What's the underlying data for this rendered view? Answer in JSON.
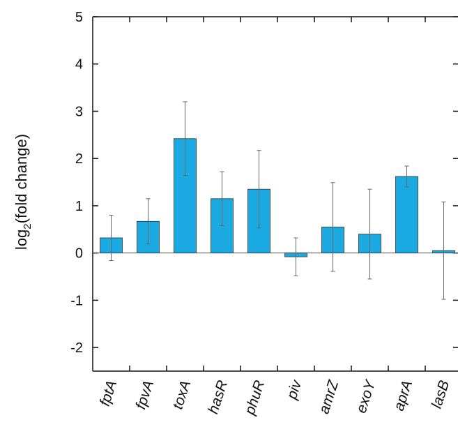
{
  "chart_data": {
    "type": "bar",
    "y_label": {
      "base": "log",
      "sub": "2",
      "rest": "(fold change)"
    },
    "categories": [
      "fptA",
      "fpvA",
      "toxA",
      "hasR",
      "phuR",
      "piv",
      "amrZ",
      "exoY",
      "aprA",
      "lasB"
    ],
    "values": [
      0.32,
      0.67,
      2.42,
      1.15,
      1.35,
      -0.08,
      0.55,
      0.4,
      1.62,
      0.05
    ],
    "errors": [
      0.48,
      0.48,
      0.78,
      0.57,
      0.82,
      0.4,
      0.94,
      0.95,
      0.22,
      1.03
    ],
    "color": "#1aa9e1",
    "ylim": [
      -2.5,
      5
    ],
    "yticks": [
      -2,
      -1,
      0,
      1,
      2,
      3,
      4,
      5
    ]
  }
}
